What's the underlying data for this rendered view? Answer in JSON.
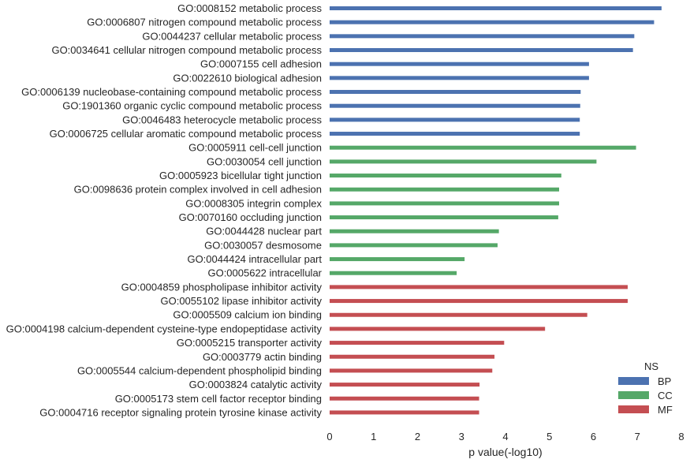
{
  "chart_data": {
    "type": "bar",
    "orientation": "horizontal",
    "xlabel": "p value(-log10)",
    "ylabel": "",
    "xlim": [
      0,
      8
    ],
    "xticks": [
      0,
      1,
      2,
      3,
      4,
      5,
      6,
      7,
      8
    ],
    "grid": false,
    "legend_position": "bottom-right",
    "legend": {
      "title": "NS",
      "entries": [
        {
          "name": "BP",
          "color": "#4c72b0"
        },
        {
          "name": "CC",
          "color": "#55a868"
        },
        {
          "name": "MF",
          "color": "#c44e52"
        }
      ]
    },
    "bars": [
      {
        "label": "GO:0008152 metabolic process",
        "value": 7.55,
        "ns": "BP"
      },
      {
        "label": "GO:0006807 nitrogen compound metabolic process",
        "value": 7.38,
        "ns": "BP"
      },
      {
        "label": "GO:0044237 cellular metabolic process",
        "value": 6.93,
        "ns": "BP"
      },
      {
        "label": "GO:0034641 cellular nitrogen compound metabolic process",
        "value": 6.9,
        "ns": "BP"
      },
      {
        "label": "GO:0007155 cell adhesion",
        "value": 5.9,
        "ns": "BP"
      },
      {
        "label": "GO:0022610 biological adhesion",
        "value": 5.9,
        "ns": "BP"
      },
      {
        "label": "GO:0006139 nucleobase-containing compound metabolic process",
        "value": 5.71,
        "ns": "BP"
      },
      {
        "label": "GO:1901360 organic cyclic compound metabolic process",
        "value": 5.7,
        "ns": "BP"
      },
      {
        "label": "GO:0046483 heterocycle metabolic process",
        "value": 5.69,
        "ns": "BP"
      },
      {
        "label": "GO:0006725 cellular aromatic compound metabolic process",
        "value": 5.69,
        "ns": "BP"
      },
      {
        "label": "GO:0005911 cell-cell junction",
        "value": 6.97,
        "ns": "CC"
      },
      {
        "label": "GO:0030054 cell junction",
        "value": 6.07,
        "ns": "CC"
      },
      {
        "label": "GO:0005923 bicellular tight junction",
        "value": 5.27,
        "ns": "CC"
      },
      {
        "label": "GO:0098636 protein complex involved in cell adhesion",
        "value": 5.22,
        "ns": "CC"
      },
      {
        "label": "GO:0008305 integrin complex",
        "value": 5.22,
        "ns": "CC"
      },
      {
        "label": "GO:0070160 occluding junction",
        "value": 5.2,
        "ns": "CC"
      },
      {
        "label": "GO:0044428 nuclear part",
        "value": 3.85,
        "ns": "CC"
      },
      {
        "label": "GO:0030057 desmosome",
        "value": 3.82,
        "ns": "CC"
      },
      {
        "label": "GO:0044424 intracellular part",
        "value": 3.07,
        "ns": "CC"
      },
      {
        "label": "GO:0005622 intracellular",
        "value": 2.89,
        "ns": "CC"
      },
      {
        "label": "GO:0004859 phospholipase inhibitor activity",
        "value": 6.78,
        "ns": "MF"
      },
      {
        "label": "GO:0055102 lipase inhibitor activity",
        "value": 6.78,
        "ns": "MF"
      },
      {
        "label": "GO:0005509 calcium ion binding",
        "value": 5.86,
        "ns": "MF"
      },
      {
        "label": "GO:0004198 calcium-dependent cysteine-type endopeptidase activity",
        "value": 4.9,
        "ns": "MF"
      },
      {
        "label": "GO:0005215 transporter activity",
        "value": 3.97,
        "ns": "MF"
      },
      {
        "label": "GO:0003779 actin binding",
        "value": 3.75,
        "ns": "MF"
      },
      {
        "label": "GO:0005544 calcium-dependent phospholipid binding",
        "value": 3.7,
        "ns": "MF"
      },
      {
        "label": "GO:0003824 catalytic activity",
        "value": 3.41,
        "ns": "MF"
      },
      {
        "label": "GO:0005173 stem cell factor receptor binding",
        "value": 3.4,
        "ns": "MF"
      },
      {
        "label": "GO:0004716 receptor signaling protein tyrosine kinase activity",
        "value": 3.4,
        "ns": "MF"
      }
    ]
  }
}
